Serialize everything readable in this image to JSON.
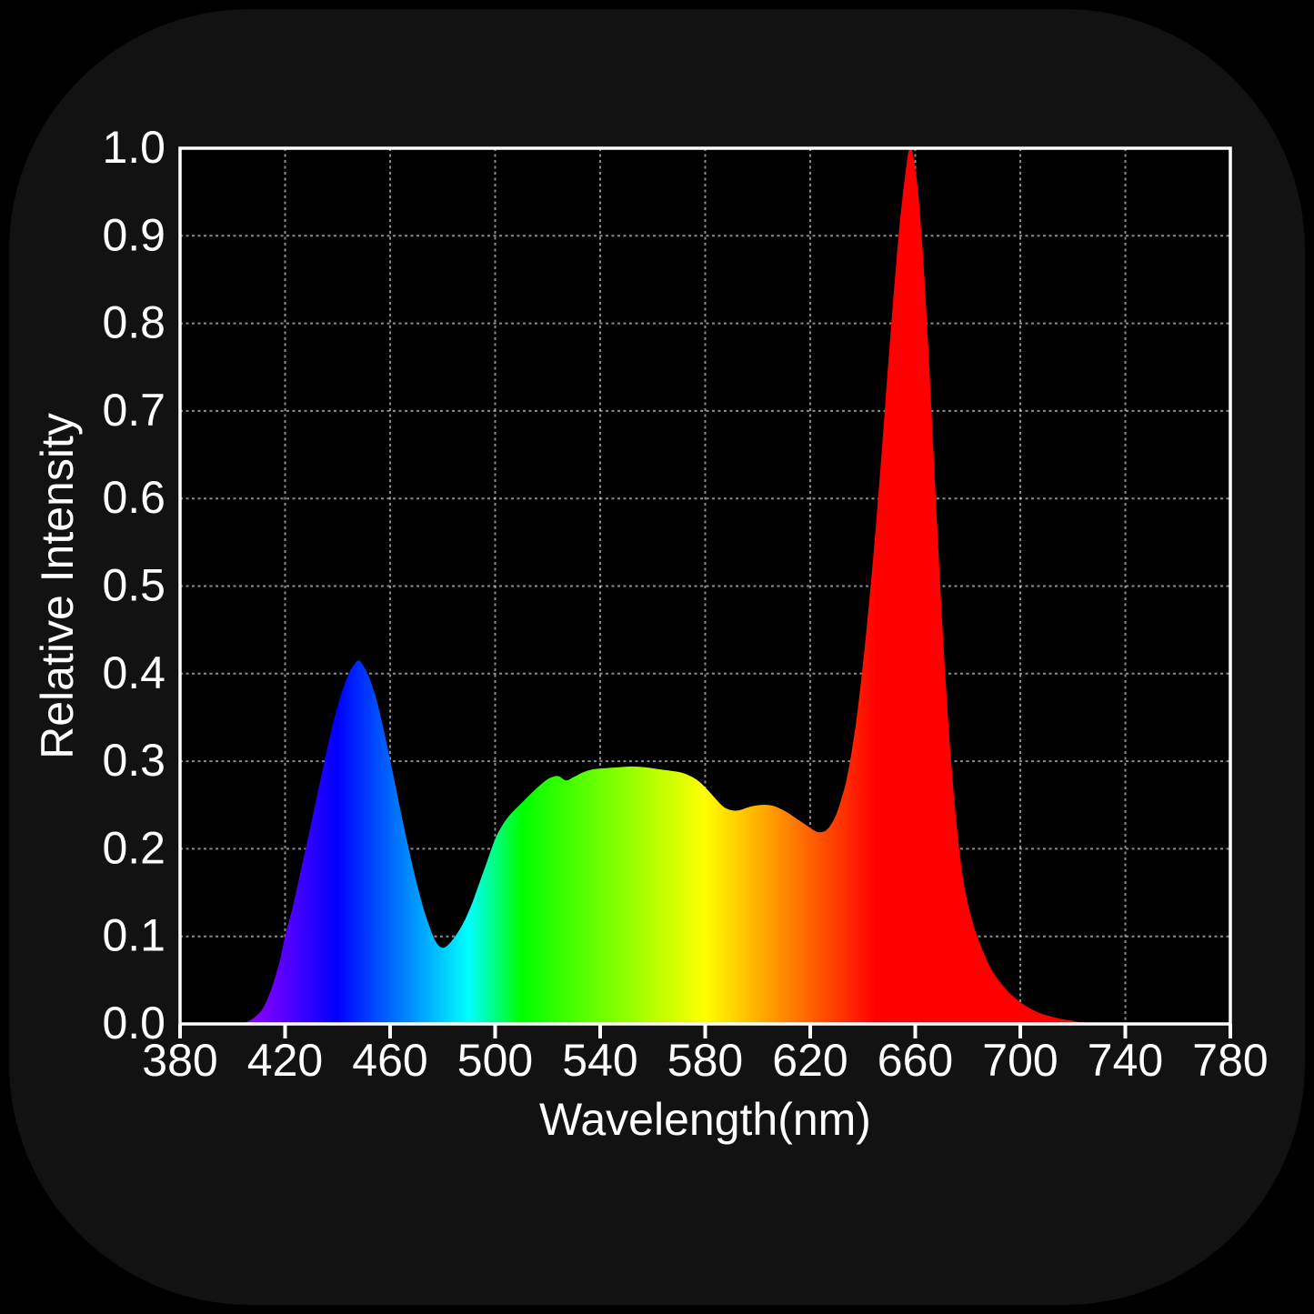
{
  "page": {
    "background": "#000000",
    "card_background": "#121212"
  },
  "chart_data": {
    "type": "area",
    "title": "",
    "xlabel": "Wavelength(nm)",
    "ylabel": "Relative Intensity",
    "xlim": [
      380,
      780
    ],
    "ylim": [
      0.0,
      1.0
    ],
    "grid": true,
    "legend": "none",
    "colors": {
      "text": "#ffffff",
      "axis_border": "#ffffff",
      "gridline": "#ffffff",
      "gridline_opacity": 0.55,
      "plot_background": "#000000",
      "fill_style": "visible-spectrum-gradient"
    },
    "x_ticks": [
      380,
      420,
      460,
      500,
      540,
      580,
      620,
      660,
      700,
      740,
      780
    ],
    "x_tick_labels": [
      "380",
      "420",
      "460",
      "500",
      "540",
      "580",
      "620",
      "660",
      "700",
      "740",
      "780"
    ],
    "y_ticks": [
      0.0,
      0.1,
      0.2,
      0.3,
      0.4,
      0.5,
      0.6,
      0.7,
      0.8,
      0.9,
      1.0
    ],
    "y_tick_labels": [
      "0.0",
      "0.1",
      "0.2",
      "0.3",
      "0.4",
      "0.5",
      "0.6",
      "0.7",
      "0.8",
      "0.9",
      "1.0"
    ],
    "series": [
      {
        "name": "LED spectrum relative intensity",
        "fill": "wavelength-gradient",
        "points": [
          [
            403,
            0
          ],
          [
            406,
            0.003
          ],
          [
            409,
            0.009
          ],
          [
            412,
            0.02
          ],
          [
            415,
            0.042
          ],
          [
            418,
            0.072
          ],
          [
            420,
            0.1
          ],
          [
            423,
            0.135
          ],
          [
            426,
            0.175
          ],
          [
            429,
            0.216
          ],
          [
            432,
            0.258
          ],
          [
            435,
            0.3
          ],
          [
            438,
            0.34
          ],
          [
            441,
            0.373
          ],
          [
            444,
            0.398
          ],
          [
            446,
            0.409
          ],
          [
            448,
            0.415
          ],
          [
            450,
            0.408
          ],
          [
            452,
            0.396
          ],
          [
            455,
            0.368
          ],
          [
            458,
            0.33
          ],
          [
            461,
            0.287
          ],
          [
            464,
            0.243
          ],
          [
            467,
            0.201
          ],
          [
            470,
            0.162
          ],
          [
            473,
            0.129
          ],
          [
            476,
            0.103
          ],
          [
            478,
            0.091
          ],
          [
            480,
            0.087
          ],
          [
            482,
            0.09
          ],
          [
            485,
            0.101
          ],
          [
            488,
            0.116
          ],
          [
            491,
            0.136
          ],
          [
            494,
            0.161
          ],
          [
            497,
            0.186
          ],
          [
            500,
            0.211
          ],
          [
            503,
            0.228
          ],
          [
            506,
            0.24
          ],
          [
            510,
            0.252
          ],
          [
            514,
            0.264
          ],
          [
            518,
            0.275
          ],
          [
            521,
            0.281
          ],
          [
            524,
            0.283
          ],
          [
            527,
            0.278
          ],
          [
            530,
            0.282
          ],
          [
            534,
            0.288
          ],
          [
            538,
            0.291
          ],
          [
            542,
            0.292
          ],
          [
            547,
            0.293
          ],
          [
            552,
            0.294
          ],
          [
            557,
            0.293
          ],
          [
            562,
            0.291
          ],
          [
            567,
            0.289
          ],
          [
            571,
            0.287
          ],
          [
            575,
            0.282
          ],
          [
            578,
            0.276
          ],
          [
            581,
            0.267
          ],
          [
            584,
            0.257
          ],
          [
            587,
            0.248
          ],
          [
            590,
            0.244
          ],
          [
            593,
            0.244
          ],
          [
            597,
            0.248
          ],
          [
            601,
            0.25
          ],
          [
            604,
            0.25
          ],
          [
            607,
            0.248
          ],
          [
            611,
            0.242
          ],
          [
            615,
            0.234
          ],
          [
            619,
            0.226
          ],
          [
            622,
            0.22
          ],
          [
            624,
            0.219
          ],
          [
            626,
            0.221
          ],
          [
            628,
            0.228
          ],
          [
            630,
            0.24
          ],
          [
            632,
            0.258
          ],
          [
            634,
            0.281
          ],
          [
            636,
            0.315
          ],
          [
            638,
            0.357
          ],
          [
            641,
            0.437
          ],
          [
            644,
            0.533
          ],
          [
            647,
            0.645
          ],
          [
            650,
            0.765
          ],
          [
            653,
            0.878
          ],
          [
            655,
            0.94
          ],
          [
            657,
            0.988
          ],
          [
            658,
            1.0
          ],
          [
            659,
            0.995
          ],
          [
            661,
            0.952
          ],
          [
            663,
            0.875
          ],
          [
            665,
            0.77
          ],
          [
            667,
            0.65
          ],
          [
            669,
            0.53
          ],
          [
            671,
            0.42
          ],
          [
            673,
            0.327
          ],
          [
            675,
            0.252
          ],
          [
            677,
            0.193
          ],
          [
            679,
            0.152
          ],
          [
            682,
            0.115
          ],
          [
            685,
            0.089
          ],
          [
            688,
            0.068
          ],
          [
            691,
            0.053
          ],
          [
            695,
            0.038
          ],
          [
            699,
            0.027
          ],
          [
            703,
            0.019
          ],
          [
            707,
            0.013
          ],
          [
            711,
            0.009
          ],
          [
            715,
            0.006
          ],
          [
            719,
            0.004
          ],
          [
            723,
            0.002
          ],
          [
            727,
            0.001
          ],
          [
            732,
            0
          ]
        ]
      }
    ]
  }
}
